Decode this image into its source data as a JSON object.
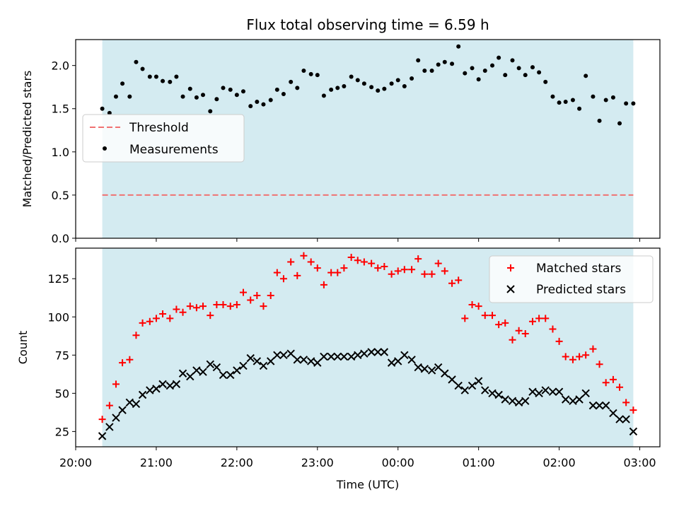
{
  "title": "Flux total observing time = 6.59 h",
  "colors": {
    "band": "#d4ebf1",
    "threshold": "#f07272",
    "matched": "#ff0000",
    "predicted": "#000000",
    "measurement": "#000000"
  },
  "chart_data": [
    {
      "type": "scatter",
      "ylabel": "Matched/Predicted stars",
      "ylim": [
        0,
        2.3
      ],
      "yticks": [
        "0.0",
        "0.5",
        "1.0",
        "1.5",
        "2.0"
      ],
      "xlim": [
        20.0,
        27.25
      ],
      "band": [
        20.33,
        26.92
      ],
      "legend": {
        "position": "center-left",
        "threshold_label": "Threshold",
        "measurements_label": "Measurements"
      },
      "threshold": {
        "name": "Threshold",
        "value": 0.5
      },
      "series": [
        {
          "name": "Measurements",
          "x": [
            20.33,
            20.42,
            20.5,
            20.58,
            20.67,
            20.75,
            20.83,
            20.92,
            21.0,
            21.08,
            21.17,
            21.25,
            21.33,
            21.42,
            21.5,
            21.58,
            21.67,
            21.75,
            21.83,
            21.92,
            22.0,
            22.08,
            22.17,
            22.25,
            22.33,
            22.42,
            22.5,
            22.58,
            22.67,
            22.75,
            22.83,
            22.92,
            23.0,
            23.08,
            23.17,
            23.25,
            23.33,
            23.42,
            23.5,
            23.58,
            23.67,
            23.75,
            23.83,
            23.92,
            24.0,
            24.08,
            24.17,
            24.25,
            24.33,
            24.42,
            24.5,
            24.58,
            24.67,
            24.75,
            24.83,
            24.92,
            25.0,
            25.08,
            25.17,
            25.25,
            25.33,
            25.42,
            25.5,
            25.58,
            25.67,
            25.75,
            25.83,
            25.92,
            26.0,
            26.08,
            26.17,
            26.25,
            26.33,
            26.42,
            26.5,
            26.58,
            26.67,
            26.75,
            26.83,
            26.92
          ],
          "y": [
            1.5,
            1.45,
            1.64,
            1.79,
            1.64,
            2.04,
            1.96,
            1.87,
            1.87,
            1.82,
            1.81,
            1.87,
            1.64,
            1.73,
            1.63,
            1.66,
            1.47,
            1.61,
            1.74,
            1.72,
            1.66,
            1.7,
            1.53,
            1.58,
            1.55,
            1.6,
            1.72,
            1.67,
            1.81,
            1.74,
            1.94,
            1.9,
            1.89,
            1.65,
            1.72,
            1.74,
            1.76,
            1.87,
            1.83,
            1.79,
            1.75,
            1.71,
            1.73,
            1.79,
            1.83,
            1.76,
            1.85,
            2.06,
            1.94,
            1.94,
            2.01,
            2.04,
            2.02,
            2.22,
            1.91,
            1.97,
            1.84,
            1.94,
            2.0,
            2.09,
            1.89,
            2.06,
            1.97,
            1.89,
            1.98,
            1.92,
            1.81,
            1.64,
            1.57,
            1.58,
            1.6,
            1.5,
            1.88,
            1.64,
            1.36,
            1.6,
            1.63,
            1.33,
            1.56,
            1.56
          ]
        }
      ]
    },
    {
      "type": "scatter",
      "xlabel": "Time (UTC)",
      "ylabel": "Count",
      "ylim": [
        15,
        145
      ],
      "yticks": [
        25,
        50,
        75,
        100,
        125
      ],
      "xlim": [
        20.0,
        27.25
      ],
      "xticks": [
        {
          "value": 20,
          "label": "20:00"
        },
        {
          "value": 21,
          "label": "21:00"
        },
        {
          "value": 22,
          "label": "22:00"
        },
        {
          "value": 23,
          "label": "23:00"
        },
        {
          "value": 24,
          "label": "00:00"
        },
        {
          "value": 25,
          "label": "01:00"
        },
        {
          "value": 26,
          "label": "02:00"
        },
        {
          "value": 27,
          "label": "03:00"
        }
      ],
      "band": [
        20.33,
        26.92
      ],
      "legend": {
        "position": "upper-right",
        "matched_label": "Matched stars",
        "predicted_label": "Predicted stars"
      },
      "series": [
        {
          "name": "Matched stars",
          "x": [
            20.33,
            20.42,
            20.5,
            20.58,
            20.67,
            20.75,
            20.83,
            20.92,
            21.0,
            21.08,
            21.17,
            21.25,
            21.33,
            21.42,
            21.5,
            21.58,
            21.67,
            21.75,
            21.83,
            21.92,
            22.0,
            22.08,
            22.17,
            22.25,
            22.33,
            22.42,
            22.5,
            22.58,
            22.67,
            22.75,
            22.83,
            22.92,
            23.0,
            23.08,
            23.17,
            23.25,
            23.33,
            23.42,
            23.5,
            23.58,
            23.67,
            23.75,
            23.83,
            23.92,
            24.0,
            24.08,
            24.17,
            24.25,
            24.33,
            24.42,
            24.5,
            24.58,
            24.67,
            24.75,
            24.83,
            24.92,
            25.0,
            25.08,
            25.17,
            25.25,
            25.33,
            25.42,
            25.5,
            25.58,
            25.67,
            25.75,
            25.83,
            25.92,
            26.0,
            26.08,
            26.17,
            26.25,
            26.33,
            26.42,
            26.5,
            26.58,
            26.67,
            26.75,
            26.83,
            26.92
          ],
          "y": [
            33,
            42,
            56,
            70,
            72,
            88,
            96,
            97,
            99,
            102,
            99,
            105,
            103,
            107,
            106,
            107,
            101,
            108,
            108,
            107,
            108,
            116,
            111,
            114,
            107,
            114,
            129,
            125,
            136,
            127,
            140,
            136,
            132,
            121,
            129,
            129,
            132,
            139,
            137,
            136,
            135,
            132,
            133,
            128,
            130,
            131,
            131,
            138,
            128,
            128,
            135,
            130,
            122,
            124,
            99,
            108,
            107,
            101,
            101,
            95,
            96,
            85,
            91,
            89,
            97,
            99,
            99,
            92,
            84,
            74,
            72,
            74,
            75,
            79,
            69,
            57,
            59,
            54,
            44,
            39
          ]
        },
        {
          "name": "Predicted stars",
          "x": [
            20.33,
            20.42,
            20.5,
            20.58,
            20.67,
            20.75,
            20.83,
            20.92,
            21.0,
            21.08,
            21.17,
            21.25,
            21.33,
            21.42,
            21.5,
            21.58,
            21.67,
            21.75,
            21.83,
            21.92,
            22.0,
            22.08,
            22.17,
            22.25,
            22.33,
            22.42,
            22.5,
            22.58,
            22.67,
            22.75,
            22.83,
            22.92,
            23.0,
            23.08,
            23.17,
            23.25,
            23.33,
            23.42,
            23.5,
            23.58,
            23.67,
            23.75,
            23.83,
            23.92,
            24.0,
            24.08,
            24.17,
            24.25,
            24.33,
            24.42,
            24.5,
            24.58,
            24.67,
            24.75,
            24.83,
            24.92,
            25.0,
            25.08,
            25.17,
            25.25,
            25.33,
            25.42,
            25.5,
            25.58,
            25.67,
            25.75,
            25.83,
            25.92,
            26.0,
            26.08,
            26.17,
            26.25,
            26.33,
            26.42,
            26.5,
            26.58,
            26.67,
            26.75,
            26.83,
            26.92
          ],
          "y": [
            22,
            28,
            34,
            39,
            44,
            43,
            49,
            52,
            53,
            56,
            55,
            56,
            63,
            61,
            65,
            64,
            69,
            67,
            62,
            62,
            65,
            68,
            73,
            71,
            68,
            71,
            75,
            75,
            76,
            72,
            72,
            71,
            70,
            74,
            74,
            74,
            74,
            74,
            75,
            76,
            77,
            77,
            77,
            70,
            71,
            75,
            72,
            67,
            66,
            65,
            67,
            63,
            59,
            55,
            52,
            55,
            58,
            52,
            50,
            49,
            46,
            45,
            44,
            45,
            51,
            50,
            52,
            51,
            51,
            46,
            45,
            46,
            50,
            42,
            42,
            42,
            37,
            33,
            33,
            25
          ]
        }
      ]
    }
  ]
}
